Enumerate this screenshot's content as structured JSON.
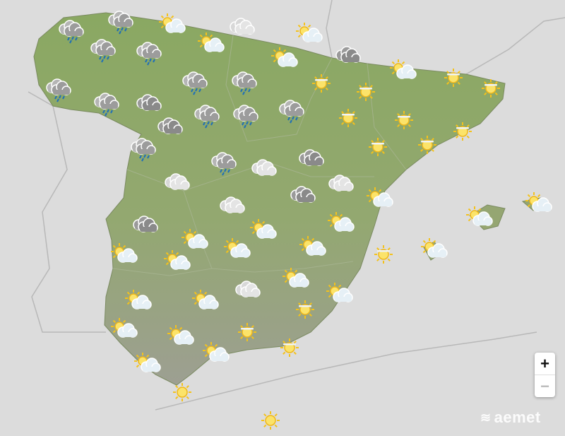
{
  "map": {
    "land_color": "#8ea866",
    "background_color": "#dcdcdc",
    "forecasts": [
      "rain",
      "rain",
      "partly-cloudy",
      "cloudy",
      "partly-cloudy",
      "partly-cloudy",
      "rain",
      "rain",
      "partly-cloudy",
      "overcast",
      "partly-cloudy",
      "sun-veiled",
      "sun-veiled",
      "sun-veiled",
      "sun-veiled",
      "rain",
      "rain",
      "overcast",
      "rain",
      "rain",
      "rain",
      "rain",
      "rain",
      "sun-veiled",
      "sun-veiled",
      "sun-veiled",
      "overcast",
      "rain",
      "sun-veiled",
      "sun-veiled",
      "rain",
      "cloudy",
      "overcast",
      "cloudy",
      "cloudy",
      "overcast",
      "partly-cloudy",
      "cloudy",
      "partly-cloudy",
      "overcast",
      "partly-cloudy",
      "partly-cloudy",
      "partly-cloudy",
      "partly-cloudy",
      "partly-cloudy",
      "partly-cloudy",
      "partly-cloudy",
      "sun-veiled",
      "partly-cloudy",
      "partly-cloudy",
      "partly-cloudy",
      "cloudy",
      "partly-cloudy",
      "partly-cloudy",
      "partly-cloudy",
      "sun-veiled",
      "partly-cloudy",
      "partly-cloudy",
      "sun-veiled",
      "sun-veiled",
      "partly-cloudy",
      "partly-cloudy",
      "clear",
      "clear"
    ]
  },
  "controls": {
    "zoom_in": "+",
    "zoom_out": "−"
  },
  "brand": {
    "logo_text": "aemet",
    "logo_icon": "aemet-logo-icon"
  }
}
